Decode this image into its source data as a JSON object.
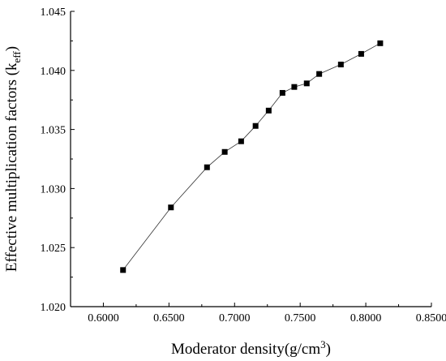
{
  "chart_data": {
    "type": "line",
    "xlabel": "Moderator density(g/cm3)",
    "ylabel": "Effective multiplication factors (keff)",
    "xlim": [
      0.575,
      0.85
    ],
    "ylim": [
      1.02,
      1.045
    ],
    "xticks": [
      0.6,
      0.65,
      0.7,
      0.75,
      0.8,
      0.85
    ],
    "yticks": [
      1.02,
      1.025,
      1.03,
      1.035,
      1.04,
      1.045
    ],
    "xtick_labels": [
      "0.6000",
      "0.6500",
      "0.7000",
      "0.7500",
      "0.8000",
      "0.8500"
    ],
    "ytick_labels": [
      "1.020",
      "1.025",
      "1.030",
      "1.035",
      "1.040",
      "1.045"
    ],
    "marker": "square",
    "series": [
      {
        "x": [
          0.615,
          0.6515,
          0.679,
          0.6925,
          0.705,
          0.716,
          0.726,
          0.7365,
          0.7455,
          0.755,
          0.7645,
          0.781,
          0.7965,
          0.811
        ],
        "y": [
          1.0231,
          1.0284,
          1.0318,
          1.0331,
          1.034,
          1.0353,
          1.0366,
          1.0381,
          1.0386,
          1.0389,
          1.0397,
          1.0405,
          1.0414,
          1.0423
        ]
      }
    ]
  }
}
